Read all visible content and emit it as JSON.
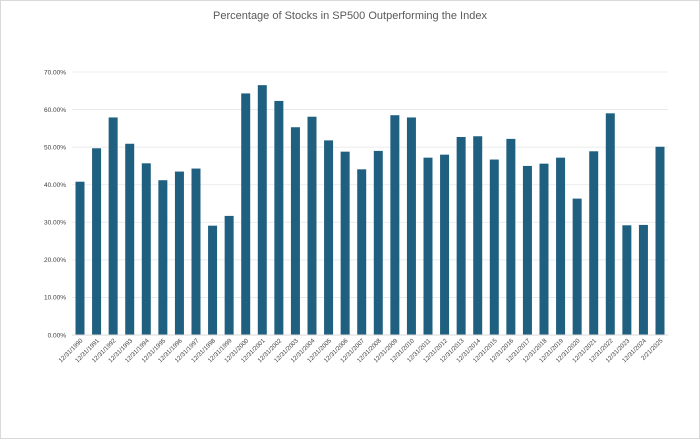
{
  "chart_data": {
    "type": "bar",
    "title": "Percentage of Stocks in SP500 Outperforming the Index",
    "xlabel": "",
    "ylabel": "",
    "ylim": [
      0,
      0.7
    ],
    "ytick_values": [
      0,
      0.1,
      0.2,
      0.3,
      0.4,
      0.5,
      0.6,
      0.7
    ],
    "ytick_labels": [
      "0.00%",
      "10.00%",
      "20.00%",
      "30.00%",
      "40.00%",
      "50.00%",
      "60.00%",
      "70.00%"
    ],
    "grid": true,
    "bar_color": "#1f6080",
    "categories": [
      "12/31/1990",
      "12/31/1991",
      "12/31/1992",
      "12/31/1993",
      "12/31/1994",
      "12/31/1995",
      "12/31/1996",
      "12/31/1997",
      "12/31/1998",
      "12/31/1999",
      "12/31/2000",
      "12/31/2001",
      "12/31/2002",
      "12/31/2003",
      "12/31/2004",
      "12/31/2005",
      "12/31/2006",
      "12/31/2007",
      "12/31/2008",
      "12/31/2009",
      "12/31/2010",
      "12/31/2011",
      "12/31/2012",
      "12/31/2013",
      "12/31/2014",
      "12/31/2015",
      "12/31/2016",
      "12/31/2017",
      "12/31/2018",
      "12/31/2019",
      "12/31/2020",
      "12/31/2021",
      "12/31/2022",
      "12/31/2023",
      "12/31/2024",
      "2/21/2025"
    ],
    "values": [
      0.408,
      0.497,
      0.579,
      0.509,
      0.457,
      0.412,
      0.435,
      0.443,
      0.291,
      0.317,
      0.643,
      0.665,
      0.623,
      0.553,
      0.581,
      0.518,
      0.488,
      0.441,
      0.49,
      0.585,
      0.579,
      0.472,
      0.48,
      0.527,
      0.529,
      0.467,
      0.522,
      0.45,
      0.456,
      0.472,
      0.363,
      0.489,
      0.59,
      0.292,
      0.293,
      0.501
    ]
  }
}
